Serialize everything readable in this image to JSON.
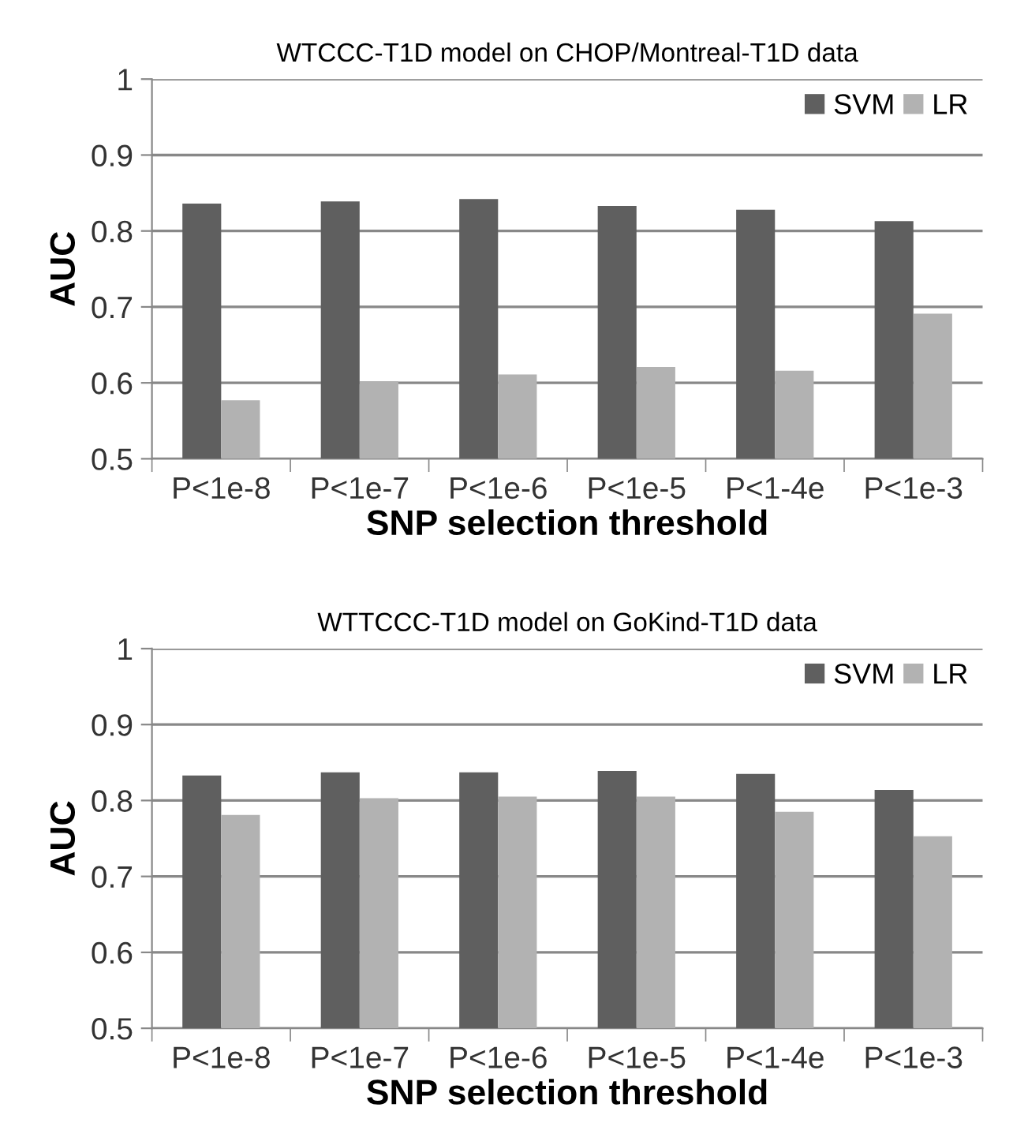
{
  "chart_data": [
    {
      "type": "bar",
      "title": "WTCCC-T1D model on CHOP/Montreal-T1D data",
      "xlabel": "SNP selection threshold",
      "ylabel": "AUC",
      "categories": [
        "P<1e-8",
        "P<1e-7",
        "P<1e-6",
        "P<1e-5",
        "P<1-4e",
        "P<1e-3"
      ],
      "series": [
        {
          "name": "SVM",
          "color": "#5f5f5f",
          "values": [
            0.836,
            0.839,
            0.842,
            0.833,
            0.828,
            0.813
          ]
        },
        {
          "name": "LR",
          "color": "#b2b2b2",
          "values": [
            0.577,
            0.602,
            0.611,
            0.621,
            0.616,
            0.691
          ]
        }
      ],
      "ylim": [
        0.5,
        1
      ],
      "yticks": [
        {
          "value": 0.5,
          "label": "0.5"
        },
        {
          "value": 0.6,
          "label": "0.6"
        },
        {
          "value": 0.7,
          "label": "0.7"
        },
        {
          "value": 0.8,
          "label": "0.8"
        },
        {
          "value": 0.9,
          "label": "0.9"
        },
        {
          "value": 1,
          "label": "1"
        }
      ],
      "grid": "y",
      "legend": "top right"
    },
    {
      "type": "bar",
      "title": "WTTCCC-T1D model on GoKind-T1D data",
      "xlabel": "SNP selection threshold",
      "ylabel": "AUC",
      "categories": [
        "P<1e-8",
        "P<1e-7",
        "P<1e-6",
        "P<1e-5",
        "P<1-4e",
        "P<1e-3"
      ],
      "series": [
        {
          "name": "SVM",
          "color": "#5f5f5f",
          "values": [
            0.833,
            0.837,
            0.837,
            0.839,
            0.835,
            0.814
          ]
        },
        {
          "name": "LR",
          "color": "#b2b2b2",
          "values": [
            0.781,
            0.803,
            0.805,
            0.805,
            0.785,
            0.753
          ]
        }
      ],
      "ylim": [
        0.5,
        1
      ],
      "yticks": [
        {
          "value": 0.5,
          "label": "0.5"
        },
        {
          "value": 0.6,
          "label": "0.6"
        },
        {
          "value": 0.7,
          "label": "0.7"
        },
        {
          "value": 0.8,
          "label": "0.8"
        },
        {
          "value": 0.9,
          "label": "0.9"
        },
        {
          "value": 1,
          "label": "1"
        }
      ],
      "grid": "y",
      "legend": "top right"
    }
  ]
}
